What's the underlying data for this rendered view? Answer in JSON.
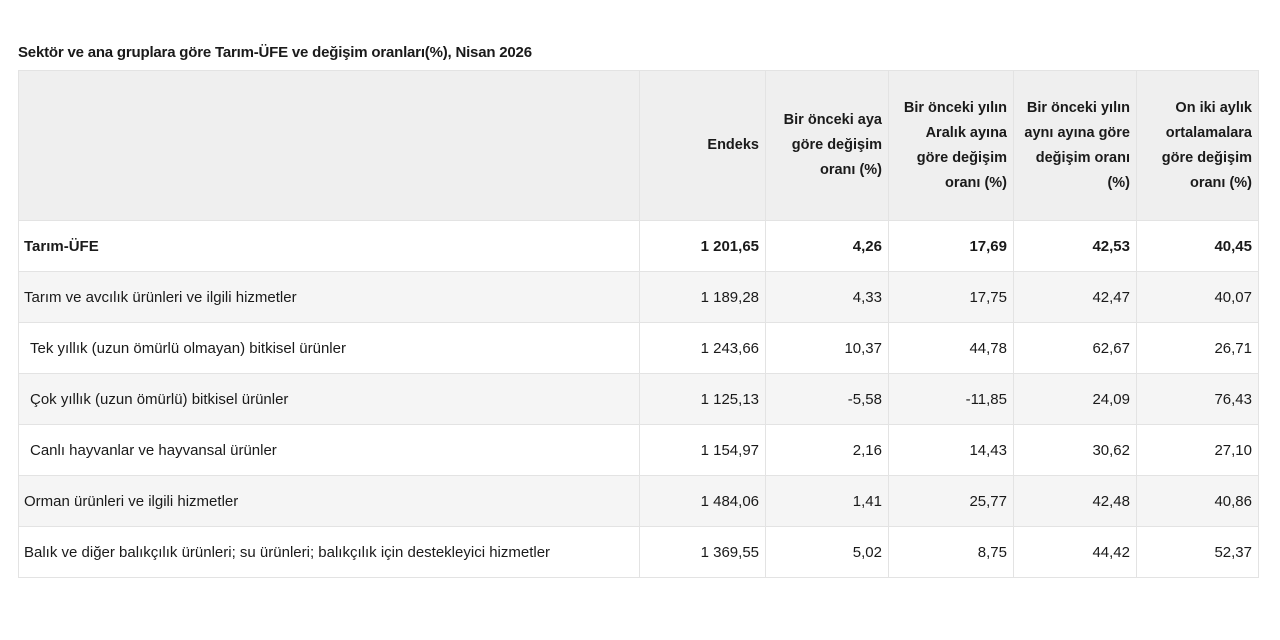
{
  "title": "Sektör ve ana gruplara göre Tarım-ÜFE ve değişim oranları(%), Nisan 2026",
  "columns": [
    "Endeks",
    "Bir önceki aya göre değişim oranı (%)",
    "Bir önceki yılın Aralık ayına göre değişim oranı (%)",
    "Bir önceki yılın aynı ayına göre değişim oranı (%)",
    "On iki aylık ortalamalara göre değişim oranı (%)"
  ],
  "rows": [
    {
      "label": "Tarım-ÜFE",
      "values": [
        "1 201,65",
        "4,26",
        "17,69",
        "42,53",
        "40,45"
      ]
    },
    {
      "label": "Tarım ve avcılık ürünleri ve ilgili hizmetler",
      "values": [
        "1 189,28",
        "4,33",
        "17,75",
        "42,47",
        "40,07"
      ]
    },
    {
      "label": "Tek yıllık (uzun ömürlü olmayan) bitkisel ürünler",
      "values": [
        "1 243,66",
        "10,37",
        "44,78",
        "62,67",
        "26,71"
      ]
    },
    {
      "label": "Çok yıllık (uzun ömürlü) bitkisel ürünler",
      "values": [
        "1 125,13",
        "-5,58",
        "-11,85",
        "24,09",
        "76,43"
      ]
    },
    {
      "label": "Canlı hayvanlar ve hayvansal ürünler",
      "values": [
        "1 154,97",
        "2,16",
        "14,43",
        "30,62",
        "27,10"
      ]
    },
    {
      "label": "Orman ürünleri ve ilgili hizmetler",
      "values": [
        "1 484,06",
        "1,41",
        "25,77",
        "42,48",
        "40,86"
      ]
    },
    {
      "label": "Balık ve diğer balıkçılık ürünleri; su ürünleri; balıkçılık için destekleyici hizmetler",
      "values": [
        "1 369,55",
        "5,02",
        "8,75",
        "44,42",
        "52,37"
      ]
    }
  ]
}
